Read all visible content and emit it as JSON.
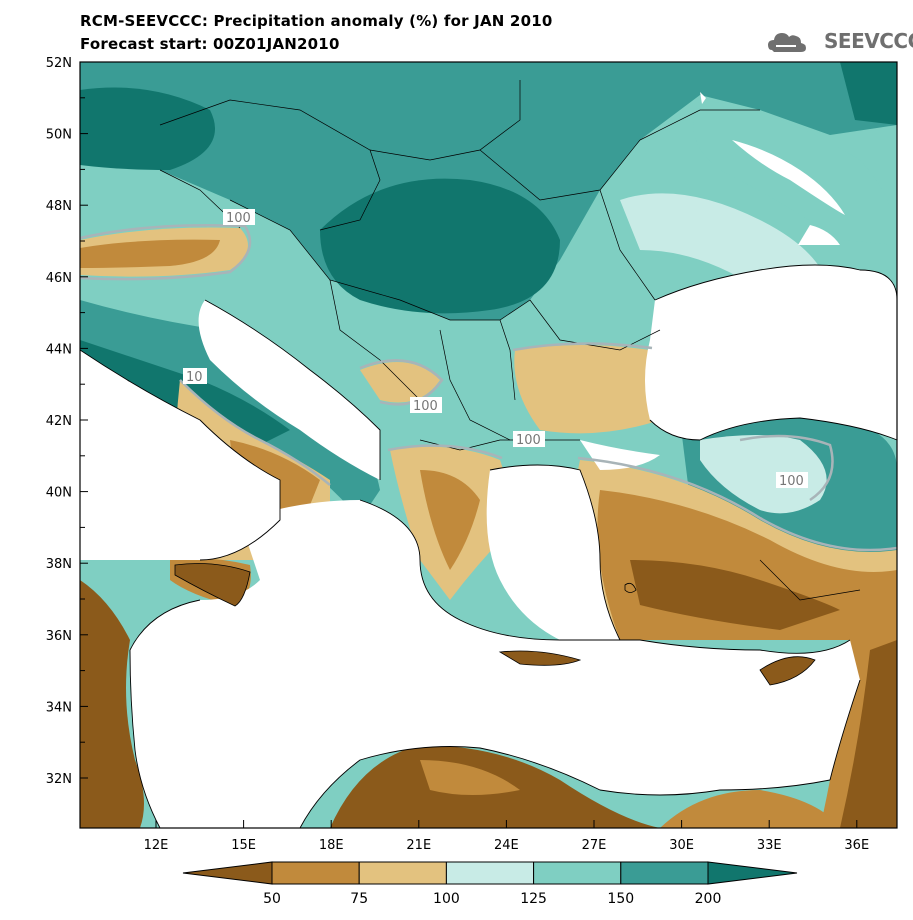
{
  "title": {
    "line1": "RCM-SEEVCCC: Precipitation anomaly (%) for JAN 2010",
    "line2": "Forecast start: 00Z01JAN2010"
  },
  "logo": {
    "text": "SEEVCCC",
    "icon": "cloud-icon"
  },
  "map": {
    "lat_ticks": [
      "52N",
      "50N",
      "48N",
      "46N",
      "44N",
      "42N",
      "40N",
      "38N",
      "36N",
      "34N",
      "32N"
    ],
    "lon_ticks": [
      "12E",
      "15E",
      "18E",
      "21E",
      "24E",
      "27E",
      "30E",
      "33E",
      "36E"
    ],
    "contour_labels": [
      "100",
      "10",
      "100",
      "100",
      "100"
    ]
  },
  "colorbar": {
    "labels": [
      "50",
      "75",
      "100",
      "125",
      "150",
      "200"
    ],
    "colors": [
      "#8b5a1b",
      "#c18a3c",
      "#e3c27f",
      "#c8ebe6",
      "#7fcfc2",
      "#3a9c95",
      "#11766d"
    ]
  }
}
